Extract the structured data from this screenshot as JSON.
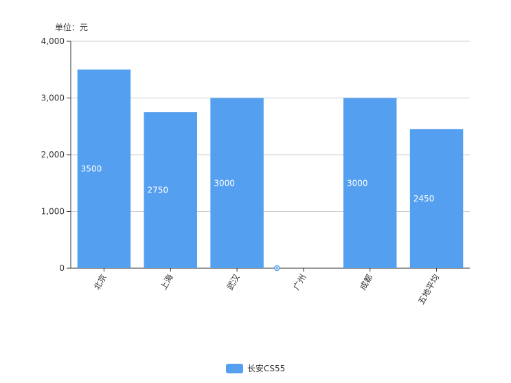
{
  "chart_data": {
    "type": "bar",
    "unit_label": "单位：元",
    "categories": [
      "北京",
      "上海",
      "武汉",
      "广州",
      "成都",
      "五地平均"
    ],
    "series": [
      {
        "name": "长安CS55",
        "values": [
          3500,
          2750,
          3000,
          0,
          3000,
          2450
        ],
        "color": "#559ff0"
      }
    ],
    "value_labels": [
      "3500",
      "2750",
      "3000",
      "",
      "3000",
      "2450"
    ],
    "yticks": [
      0,
      1000,
      2000,
      3000,
      4000
    ],
    "ytick_labels": [
      "0",
      "1,000",
      "2,000",
      "3,000",
      "4,000"
    ],
    "ylim": [
      0,
      4000
    ],
    "grid": true,
    "legend_position": "bottom-center"
  }
}
